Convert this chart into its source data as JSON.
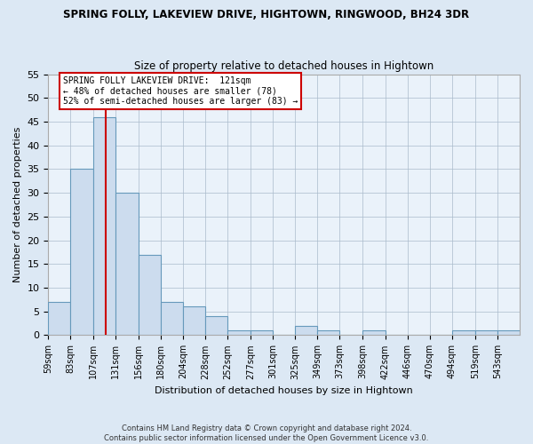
{
  "title": "SPRING FOLLY, LAKEVIEW DRIVE, HIGHTOWN, RINGWOOD, BH24 3DR",
  "subtitle": "Size of property relative to detached houses in Hightown",
  "xlabel": "Distribution of detached houses by size in Hightown",
  "ylabel": "Number of detached properties",
  "bin_labels": [
    "59sqm",
    "83sqm",
    "107sqm",
    "131sqm",
    "156sqm",
    "180sqm",
    "204sqm",
    "228sqm",
    "252sqm",
    "277sqm",
    "301sqm",
    "325sqm",
    "349sqm",
    "373sqm",
    "398sqm",
    "422sqm",
    "446sqm",
    "470sqm",
    "494sqm",
    "519sqm",
    "543sqm"
  ],
  "bin_edges": [
    59,
    83,
    107,
    131,
    156,
    180,
    204,
    228,
    252,
    277,
    301,
    325,
    349,
    373,
    398,
    422,
    446,
    470,
    494,
    519,
    543,
    567
  ],
  "bar_heights": [
    7,
    35,
    46,
    30,
    17,
    7,
    6,
    4,
    1,
    1,
    0,
    2,
    1,
    0,
    1,
    0,
    0,
    0,
    1,
    1,
    1
  ],
  "bar_color": "#ccdcee",
  "bar_edge_color": "#6699bb",
  "subject_size": 121,
  "subject_line_color": "#cc0000",
  "ylim": [
    0,
    55
  ],
  "yticks": [
    0,
    5,
    10,
    15,
    20,
    25,
    30,
    35,
    40,
    45,
    50,
    55
  ],
  "annotation_text": "SPRING FOLLY LAKEVIEW DRIVE:  121sqm\n← 48% of detached houses are smaller (78)\n52% of semi-detached houses are larger (83) →",
  "annotation_box_facecolor": "#ffffff",
  "annotation_box_edgecolor": "#cc0000",
  "footnote1": "Contains HM Land Registry data © Crown copyright and database right 2024.",
  "footnote2": "Contains public sector information licensed under the Open Government Licence v3.0.",
  "fig_facecolor": "#dce8f4",
  "plot_facecolor": "#eaf2fa"
}
